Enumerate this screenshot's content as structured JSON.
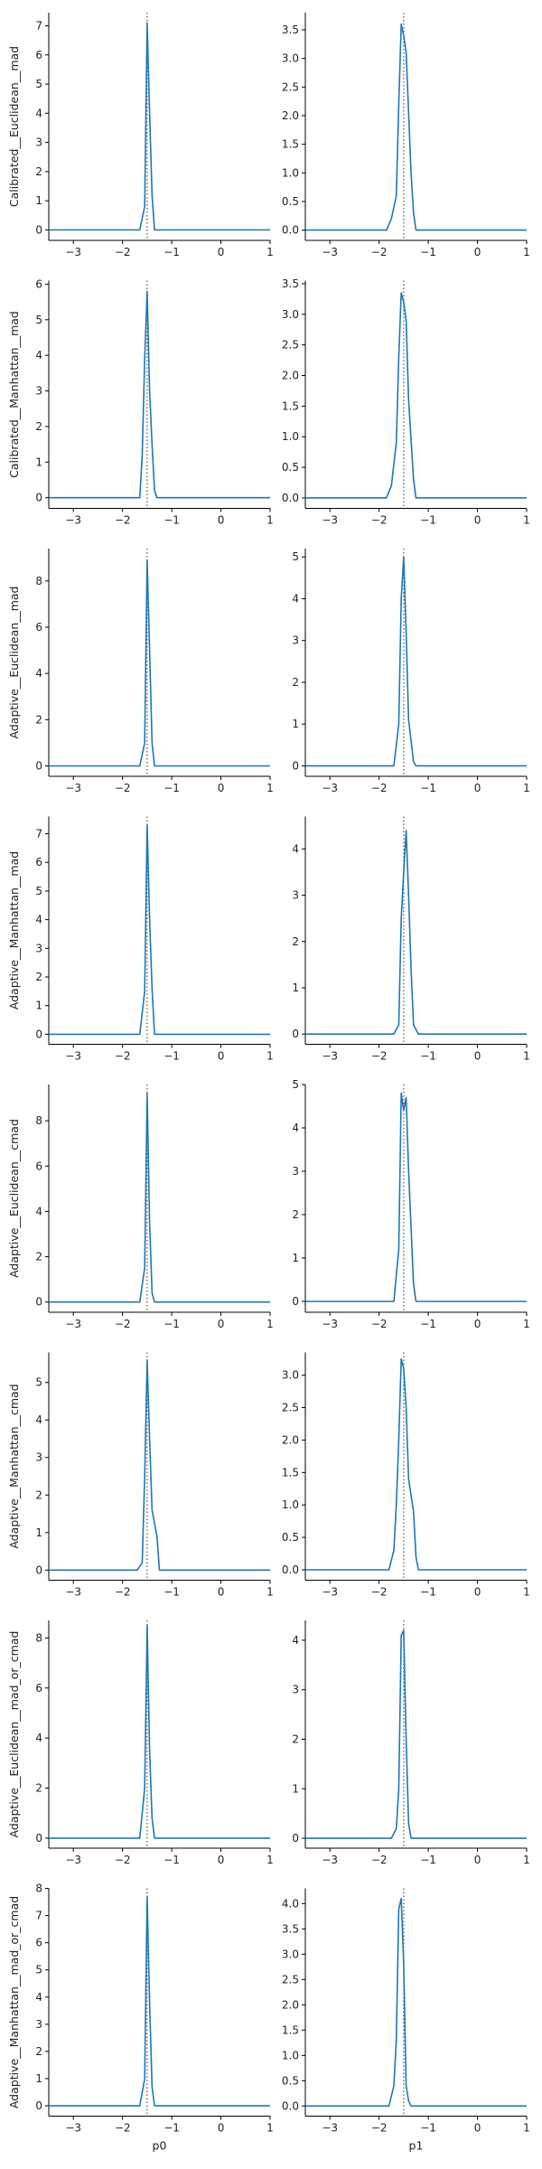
{
  "chart_data": [
    {
      "type": "line",
      "row": 0,
      "col": 0,
      "ylabel": "Calibrated__Euclidean__mad",
      "xlabel": "",
      "xlim": [
        -3.5,
        1
      ],
      "ylim": [
        -0.36,
        7.45
      ],
      "xticks": [
        -3,
        -2,
        -1,
        0,
        1
      ],
      "yticks": [
        0,
        1,
        2,
        3,
        4,
        5,
        6,
        7
      ],
      "ref_x": -1.5,
      "series": [
        {
          "color": "#1f77b4",
          "x": [
            -3.5,
            -1.65,
            -1.55,
            -1.5,
            -1.45,
            -1.4,
            -1.35,
            1
          ],
          "y": [
            0,
            0,
            0.8,
            7.1,
            4.0,
            1.2,
            0,
            0
          ]
        }
      ]
    },
    {
      "type": "line",
      "row": 0,
      "col": 1,
      "ylabel": "",
      "xlabel": "",
      "xlim": [
        -3.5,
        1
      ],
      "ylim": [
        -0.18,
        3.8
      ],
      "xticks": [
        -3,
        -2,
        -1,
        0,
        1
      ],
      "yticks": [
        0.0,
        0.5,
        1.0,
        1.5,
        2.0,
        2.5,
        3.0,
        3.5
      ],
      "ref_x": -1.5,
      "series": [
        {
          "color": "#1f77b4",
          "x": [
            -3.5,
            -1.85,
            -1.75,
            -1.65,
            -1.6,
            -1.55,
            -1.5,
            -1.45,
            -1.35,
            -1.3,
            -1.25,
            1
          ],
          "y": [
            0,
            0,
            0.2,
            0.6,
            2.2,
            3.6,
            3.4,
            3.1,
            1.0,
            0.3,
            0,
            0
          ]
        }
      ]
    },
    {
      "type": "line",
      "row": 1,
      "col": 0,
      "ylabel": "Calibrated__Manhattan__mad",
      "xlabel": "",
      "xlim": [
        -3.5,
        1
      ],
      "ylim": [
        -0.3,
        6.1
      ],
      "xticks": [
        -3,
        -2,
        -1,
        0,
        1
      ],
      "yticks": [
        0,
        1,
        2,
        3,
        4,
        5,
        6
      ],
      "ref_x": -1.5,
      "series": [
        {
          "color": "#1f77b4",
          "x": [
            -3.5,
            -1.65,
            -1.6,
            -1.55,
            -1.5,
            -1.45,
            -1.4,
            -1.35,
            -1.3,
            1
          ],
          "y": [
            0,
            0,
            1.2,
            3.9,
            5.8,
            3.0,
            1.5,
            0.2,
            0,
            0
          ]
        }
      ]
    },
    {
      "type": "line",
      "row": 1,
      "col": 1,
      "ylabel": "",
      "xlabel": "",
      "xlim": [
        -3.5,
        1
      ],
      "ylim": [
        -0.17,
        3.55
      ],
      "xticks": [
        -3,
        -2,
        -1,
        0,
        1
      ],
      "yticks": [
        0.0,
        0.5,
        1.0,
        1.5,
        2.0,
        2.5,
        3.0,
        3.5
      ],
      "ref_x": -1.5,
      "series": [
        {
          "color": "#1f77b4",
          "x": [
            -3.5,
            -1.85,
            -1.75,
            -1.65,
            -1.6,
            -1.55,
            -1.5,
            -1.45,
            -1.4,
            -1.3,
            -1.25,
            1
          ],
          "y": [
            0,
            0,
            0.2,
            0.9,
            2.3,
            3.35,
            3.2,
            2.9,
            1.6,
            0.3,
            0,
            0
          ]
        }
      ]
    },
    {
      "type": "line",
      "row": 2,
      "col": 0,
      "ylabel": "Adaptive__Euclidean__mad",
      "xlabel": "",
      "xlim": [
        -3.5,
        1
      ],
      "ylim": [
        -0.45,
        9.4
      ],
      "xticks": [
        -3,
        -2,
        -1,
        0,
        1
      ],
      "yticks": [
        0,
        2,
        4,
        6,
        8
      ],
      "ref_x": -1.5,
      "series": [
        {
          "color": "#1f77b4",
          "x": [
            -3.5,
            -1.65,
            -1.55,
            -1.5,
            -1.45,
            -1.4,
            -1.35,
            1
          ],
          "y": [
            0,
            0,
            1.0,
            8.9,
            5.0,
            1.0,
            0,
            0
          ]
        }
      ]
    },
    {
      "type": "line",
      "row": 2,
      "col": 1,
      "ylabel": "",
      "xlabel": "",
      "xlim": [
        -3.5,
        1
      ],
      "ylim": [
        -0.25,
        5.2
      ],
      "xticks": [
        -3,
        -2,
        -1,
        0,
        1
      ],
      "yticks": [
        0,
        1,
        2,
        3,
        4,
        5
      ],
      "ref_x": -1.5,
      "series": [
        {
          "color": "#1f77b4",
          "x": [
            -3.5,
            -1.7,
            -1.6,
            -1.55,
            -1.5,
            -1.45,
            -1.4,
            -1.3,
            -1.25,
            1
          ],
          "y": [
            0,
            0,
            1.0,
            4.0,
            5.0,
            3.2,
            1.1,
            0.1,
            0,
            0
          ]
        }
      ]
    },
    {
      "type": "line",
      "row": 3,
      "col": 0,
      "ylabel": "Adaptive__Manhattan__mad",
      "xlabel": "",
      "xlim": [
        -3.5,
        1
      ],
      "ylim": [
        -0.35,
        7.6
      ],
      "xticks": [
        -3,
        -2,
        -1,
        0,
        1
      ],
      "yticks": [
        0,
        1,
        2,
        3,
        4,
        5,
        6,
        7
      ],
      "ref_x": -1.5,
      "series": [
        {
          "color": "#1f77b4",
          "x": [
            -3.5,
            -1.65,
            -1.55,
            -1.5,
            -1.45,
            -1.4,
            -1.35,
            1
          ],
          "y": [
            0,
            0,
            1.5,
            7.3,
            4.0,
            1.6,
            0,
            0
          ]
        }
      ]
    },
    {
      "type": "line",
      "row": 3,
      "col": 1,
      "ylabel": "",
      "xlabel": "",
      "xlim": [
        -3.5,
        1
      ],
      "ylim": [
        -0.22,
        4.7
      ],
      "xticks": [
        -3,
        -2,
        -1,
        0,
        1
      ],
      "yticks": [
        0,
        1,
        2,
        3,
        4
      ],
      "ref_x": -1.5,
      "series": [
        {
          "color": "#1f77b4",
          "x": [
            -3.5,
            -1.7,
            -1.6,
            -1.55,
            -1.5,
            -1.45,
            -1.4,
            -1.35,
            -1.3,
            -1.2,
            1
          ],
          "y": [
            0,
            0,
            0.2,
            2.5,
            3.5,
            4.4,
            3.0,
            1.4,
            0.2,
            0,
            0
          ]
        }
      ]
    },
    {
      "type": "line",
      "row": 4,
      "col": 0,
      "ylabel": "Adaptive__Euclidean__cmad",
      "xlabel": "",
      "xlim": [
        -3.5,
        1
      ],
      "ylim": [
        -0.45,
        9.6
      ],
      "xticks": [
        -3,
        -2,
        -1,
        0,
        1
      ],
      "yticks": [
        0,
        2,
        4,
        6,
        8
      ],
      "ref_x": -1.5,
      "series": [
        {
          "color": "#1f77b4",
          "x": [
            -3.5,
            -1.65,
            -1.55,
            -1.5,
            -1.45,
            -1.4,
            -1.35,
            1
          ],
          "y": [
            0,
            0,
            1.5,
            9.2,
            3.5,
            0.4,
            0,
            0
          ]
        }
      ]
    },
    {
      "type": "line",
      "row": 4,
      "col": 1,
      "ylabel": "",
      "xlabel": "",
      "xlim": [
        -3.5,
        1
      ],
      "ylim": [
        -0.25,
        5.0
      ],
      "xticks": [
        -3,
        -2,
        -1,
        0,
        1
      ],
      "yticks": [
        0,
        1,
        2,
        3,
        4,
        5
      ],
      "ref_x": -1.5,
      "series": [
        {
          "color": "#1f77b4",
          "x": [
            -3.5,
            -1.7,
            -1.6,
            -1.55,
            -1.5,
            -1.45,
            -1.4,
            -1.3,
            -1.25,
            1
          ],
          "y": [
            0,
            0,
            1.2,
            4.8,
            4.4,
            4.7,
            3.0,
            0.4,
            0,
            0
          ]
        }
      ]
    },
    {
      "type": "line",
      "row": 5,
      "col": 0,
      "ylabel": "Adaptive__Manhattan__cmad",
      "xlabel": "",
      "xlim": [
        -3.5,
        1
      ],
      "ylim": [
        -0.27,
        5.8
      ],
      "xticks": [
        -3,
        -2,
        -1,
        0,
        1
      ],
      "yticks": [
        0,
        1,
        2,
        3,
        4,
        5
      ],
      "ref_x": -1.5,
      "series": [
        {
          "color": "#1f77b4",
          "x": [
            -3.5,
            -1.7,
            -1.6,
            -1.55,
            -1.5,
            -1.45,
            -1.4,
            -1.3,
            -1.25,
            1
          ],
          "y": [
            0,
            0,
            0.2,
            2.5,
            5.6,
            3.5,
            1.6,
            0.9,
            0,
            0
          ]
        }
      ]
    },
    {
      "type": "line",
      "row": 5,
      "col": 1,
      "ylabel": "",
      "xlabel": "",
      "xlim": [
        -3.5,
        1
      ],
      "ylim": [
        -0.16,
        3.35
      ],
      "xticks": [
        -3,
        -2,
        -1,
        0,
        1
      ],
      "yticks": [
        0.0,
        0.5,
        1.0,
        1.5,
        2.0,
        2.5,
        3.0
      ],
      "ref_x": -1.5,
      "series": [
        {
          "color": "#1f77b4",
          "x": [
            -3.5,
            -1.8,
            -1.7,
            -1.65,
            -1.6,
            -1.55,
            -1.5,
            -1.45,
            -1.4,
            -1.3,
            -1.25,
            -1.2,
            1
          ],
          "y": [
            0,
            0,
            0.3,
            1.0,
            2.0,
            3.25,
            3.1,
            2.5,
            1.4,
            0.9,
            0.2,
            0,
            0
          ]
        }
      ]
    },
    {
      "type": "line",
      "row": 6,
      "col": 0,
      "ylabel": "Adaptive__Euclidean__mad_or_cmad",
      "xlabel": "",
      "xlim": [
        -3.5,
        1
      ],
      "ylim": [
        -0.4,
        8.7
      ],
      "xticks": [
        -3,
        -2,
        -1,
        0,
        1
      ],
      "yticks": [
        0,
        2,
        4,
        6,
        8
      ],
      "ref_x": -1.5,
      "series": [
        {
          "color": "#1f77b4",
          "x": [
            -3.5,
            -1.65,
            -1.55,
            -1.5,
            -1.45,
            -1.4,
            -1.35,
            1
          ],
          "y": [
            0,
            0,
            2.0,
            8.5,
            3.5,
            0.8,
            0,
            0
          ]
        }
      ]
    },
    {
      "type": "line",
      "row": 6,
      "col": 1,
      "ylabel": "",
      "xlabel": "",
      "xlim": [
        -3.5,
        1
      ],
      "ylim": [
        -0.2,
        4.4
      ],
      "xticks": [
        -3,
        -2,
        -1,
        0,
        1
      ],
      "yticks": [
        0,
        1,
        2,
        3,
        4
      ],
      "ref_x": -1.5,
      "series": [
        {
          "color": "#1f77b4",
          "x": [
            -3.5,
            -1.75,
            -1.65,
            -1.6,
            -1.55,
            -1.5,
            -1.45,
            -1.4,
            -1.35,
            1
          ],
          "y": [
            0,
            0,
            0.2,
            1.0,
            4.1,
            4.2,
            2.0,
            0.3,
            0,
            0
          ]
        }
      ]
    },
    {
      "type": "line",
      "row": 7,
      "col": 0,
      "ylabel": "Adaptive__Manhattan__mad_or_cmad",
      "xlabel": "p0",
      "xlim": [
        -3.5,
        1
      ],
      "ylim": [
        -0.38,
        8.0
      ],
      "xticks": [
        -3,
        -2,
        -1,
        0,
        1
      ],
      "yticks": [
        0,
        1,
        2,
        3,
        4,
        5,
        6,
        7,
        8
      ],
      "ref_x": -1.5,
      "series": [
        {
          "color": "#1f77b4",
          "x": [
            -3.5,
            -1.65,
            -1.55,
            -1.5,
            -1.45,
            -1.4,
            -1.35,
            1
          ],
          "y": [
            0,
            0,
            1.0,
            7.7,
            3.8,
            0.7,
            0,
            0
          ]
        }
      ]
    },
    {
      "type": "line",
      "row": 7,
      "col": 1,
      "ylabel": "",
      "xlabel": "p1",
      "xlim": [
        -3.5,
        1
      ],
      "ylim": [
        -0.2,
        4.3
      ],
      "xticks": [
        -3,
        -2,
        -1,
        0,
        1
      ],
      "yticks": [
        0.0,
        0.5,
        1.0,
        1.5,
        2.0,
        2.5,
        3.0,
        3.5,
        4.0
      ],
      "ref_x": -1.5,
      "series": [
        {
          "color": "#1f77b4",
          "x": [
            -3.5,
            -1.8,
            -1.7,
            -1.65,
            -1.6,
            -1.55,
            -1.5,
            -1.45,
            -1.4,
            -1.35,
            1
          ],
          "y": [
            0,
            0,
            0.4,
            1.3,
            3.9,
            4.1,
            2.8,
            0.4,
            0.1,
            0,
            0
          ]
        }
      ]
    }
  ]
}
